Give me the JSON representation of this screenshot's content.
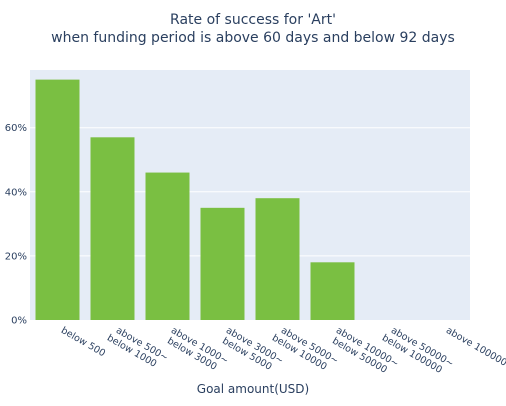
{
  "chart_data": {
    "type": "bar",
    "title": [
      "Rate of success for 'Art'",
      "when funding period is above 60 days and below 92 days"
    ],
    "xlabel": "Goal amount(USD)",
    "ylabel": "",
    "categories": [
      [
        "below 500"
      ],
      [
        "above 500~",
        "below 1000"
      ],
      [
        "above 1000~",
        "below 3000"
      ],
      [
        "above 3000~",
        "below 5000"
      ],
      [
        "above 5000~",
        "below 10000"
      ],
      [
        "above 10000~",
        "below 50000"
      ],
      [
        "above 50000~",
        "below 100000"
      ],
      [
        "above 100000"
      ]
    ],
    "values": [
      75,
      57,
      46,
      35,
      38,
      18,
      0,
      0
    ],
    "ylim": [
      0,
      78
    ],
    "yticks": [
      0,
      20,
      40,
      60
    ],
    "ytick_labels": [
      "0%",
      "20%",
      "40%",
      "60%"
    ],
    "grid": true,
    "colors": {
      "bar": "#7abf42",
      "plot_bg": "#e5ecf6",
      "grid": "#ffffff",
      "text": "#2a3f5f"
    }
  }
}
